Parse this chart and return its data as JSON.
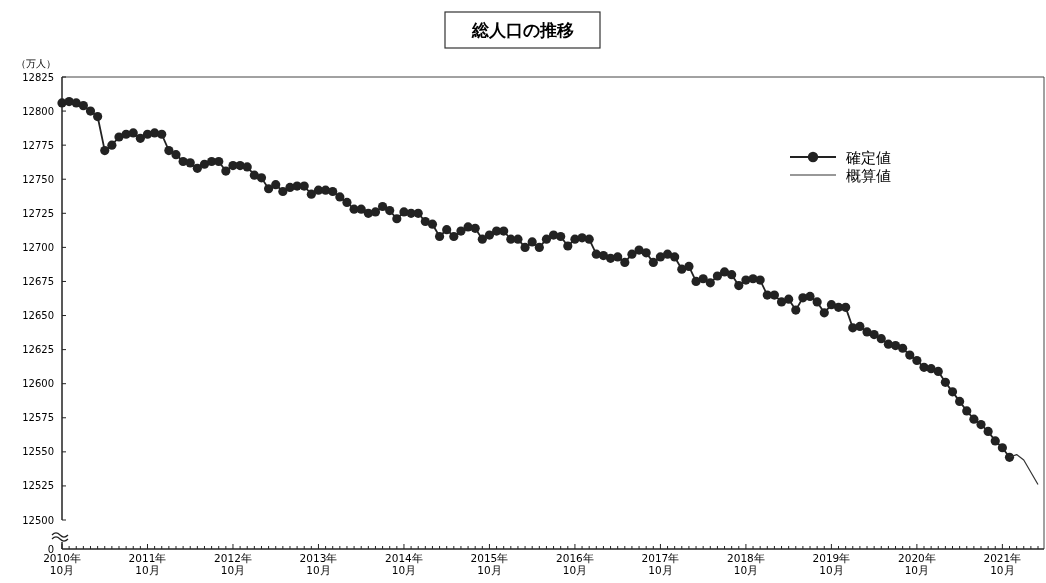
{
  "chart_data": {
    "type": "line",
    "title": "総人口の推移",
    "ylabel": "（万人）",
    "categories": [
      "2010年\n10月",
      null,
      null,
      null,
      null,
      null,
      null,
      null,
      null,
      null,
      null,
      null,
      "2011年\n10月",
      null,
      null,
      null,
      null,
      null,
      null,
      null,
      null,
      null,
      null,
      null,
      "2012年\n10月",
      null,
      null,
      null,
      null,
      null,
      null,
      null,
      null,
      null,
      null,
      null,
      "2013年\n10月",
      null,
      null,
      null,
      null,
      null,
      null,
      null,
      null,
      null,
      null,
      null,
      "2014年\n10月",
      null,
      null,
      null,
      null,
      null,
      null,
      null,
      null,
      null,
      null,
      null,
      "2015年\n10月",
      null,
      null,
      null,
      null,
      null,
      null,
      null,
      null,
      null,
      null,
      null,
      "2016年\n10月",
      null,
      null,
      null,
      null,
      null,
      null,
      null,
      null,
      null,
      null,
      null,
      "2017年\n10月",
      null,
      null,
      null,
      null,
      null,
      null,
      null,
      null,
      null,
      null,
      null,
      "2018年\n10月",
      null,
      null,
      null,
      null,
      null,
      null,
      null,
      null,
      null,
      null,
      null,
      "2019年\n10月",
      null,
      null,
      null,
      null,
      null,
      null,
      null,
      null,
      null,
      null,
      null,
      "2020年\n10月",
      null,
      null,
      null,
      null,
      null,
      null,
      null,
      null,
      null,
      null,
      null,
      "2021年\n10月",
      null,
      null,
      null,
      null,
      null
    ],
    "series": [
      {
        "name": "確定値",
        "color": "#222222",
        "marker": "circle",
        "values": [
          12806,
          12807,
          12806,
          12804,
          12800,
          12796,
          12771,
          12775,
          12781,
          12783,
          12784,
          12780,
          12783,
          12784,
          12783,
          12771,
          12768,
          12763,
          12762,
          12758,
          12761,
          12763,
          12763,
          12756,
          12760,
          12760,
          12759,
          12753,
          12751,
          12743,
          12746,
          12741,
          12744,
          12745,
          12745,
          12739,
          12742,
          12742,
          12741,
          12737,
          12733,
          12728,
          12728,
          12725,
          12726,
          12730,
          12727,
          12721,
          12726,
          12725,
          12725,
          12719,
          12717,
          12708,
          12713,
          12708,
          12712,
          12715,
          12714,
          12706,
          12709,
          12712,
          12712,
          12706,
          12706,
          12700,
          12704,
          12700,
          12706,
          12709,
          12708,
          12701,
          12706,
          12707,
          12706,
          12695,
          12694,
          12692,
          12693,
          12689,
          12695,
          12698,
          12696,
          12689,
          12693,
          12695,
          12693,
          12684,
          12686,
          12675,
          12677,
          12674,
          12679,
          12682,
          12680,
          12672,
          12676,
          12677,
          12676,
          12665,
          12665,
          12660,
          12662,
          12654,
          12663,
          12664,
          12660,
          12652,
          12658,
          12656,
          12656,
          12641,
          12642,
          12638,
          12636,
          12633,
          12629,
          12628,
          12626,
          12621,
          12617,
          12612,
          12611,
          12609,
          12601,
          12594,
          12587,
          12580,
          12574,
          12570,
          12565,
          12558,
          12553,
          12546,
          null,
          null,
          null,
          null
        ]
      },
      {
        "name": "概算値",
        "color": "#333333",
        "marker": "none",
        "values": [
          null,
          null,
          null,
          null,
          null,
          null,
          null,
          null,
          null,
          null,
          null,
          null,
          null,
          null,
          null,
          null,
          null,
          null,
          null,
          null,
          null,
          null,
          null,
          null,
          null,
          null,
          null,
          null,
          null,
          null,
          null,
          null,
          null,
          null,
          null,
          null,
          null,
          null,
          null,
          null,
          null,
          null,
          null,
          null,
          null,
          null,
          null,
          null,
          null,
          null,
          null,
          null,
          null,
          null,
          null,
          null,
          null,
          null,
          null,
          null,
          null,
          null,
          null,
          null,
          null,
          null,
          null,
          null,
          null,
          null,
          null,
          null,
          null,
          null,
          null,
          null,
          null,
          null,
          null,
          null,
          null,
          null,
          null,
          null,
          null,
          null,
          null,
          null,
          null,
          null,
          null,
          null,
          null,
          null,
          null,
          null,
          null,
          null,
          null,
          null,
          null,
          null,
          null,
          null,
          null,
          null,
          null,
          null,
          null,
          null,
          null,
          null,
          null,
          null,
          null,
          null,
          null,
          null,
          null,
          null,
          null,
          null,
          null,
          null,
          null,
          null,
          null,
          null,
          null,
          null,
          null,
          null,
          null,
          12546,
          12548,
          12544,
          12535,
          12526
        ]
      }
    ],
    "ylim": [
      12500,
      12825
    ],
    "yticks": [
      12500,
      12525,
      12550,
      12575,
      12600,
      12625,
      12650,
      12675,
      12700,
      12725,
      12750,
      12775,
      12800,
      12825
    ],
    "annotations": [
      "0"
    ],
    "legend": "top right"
  }
}
